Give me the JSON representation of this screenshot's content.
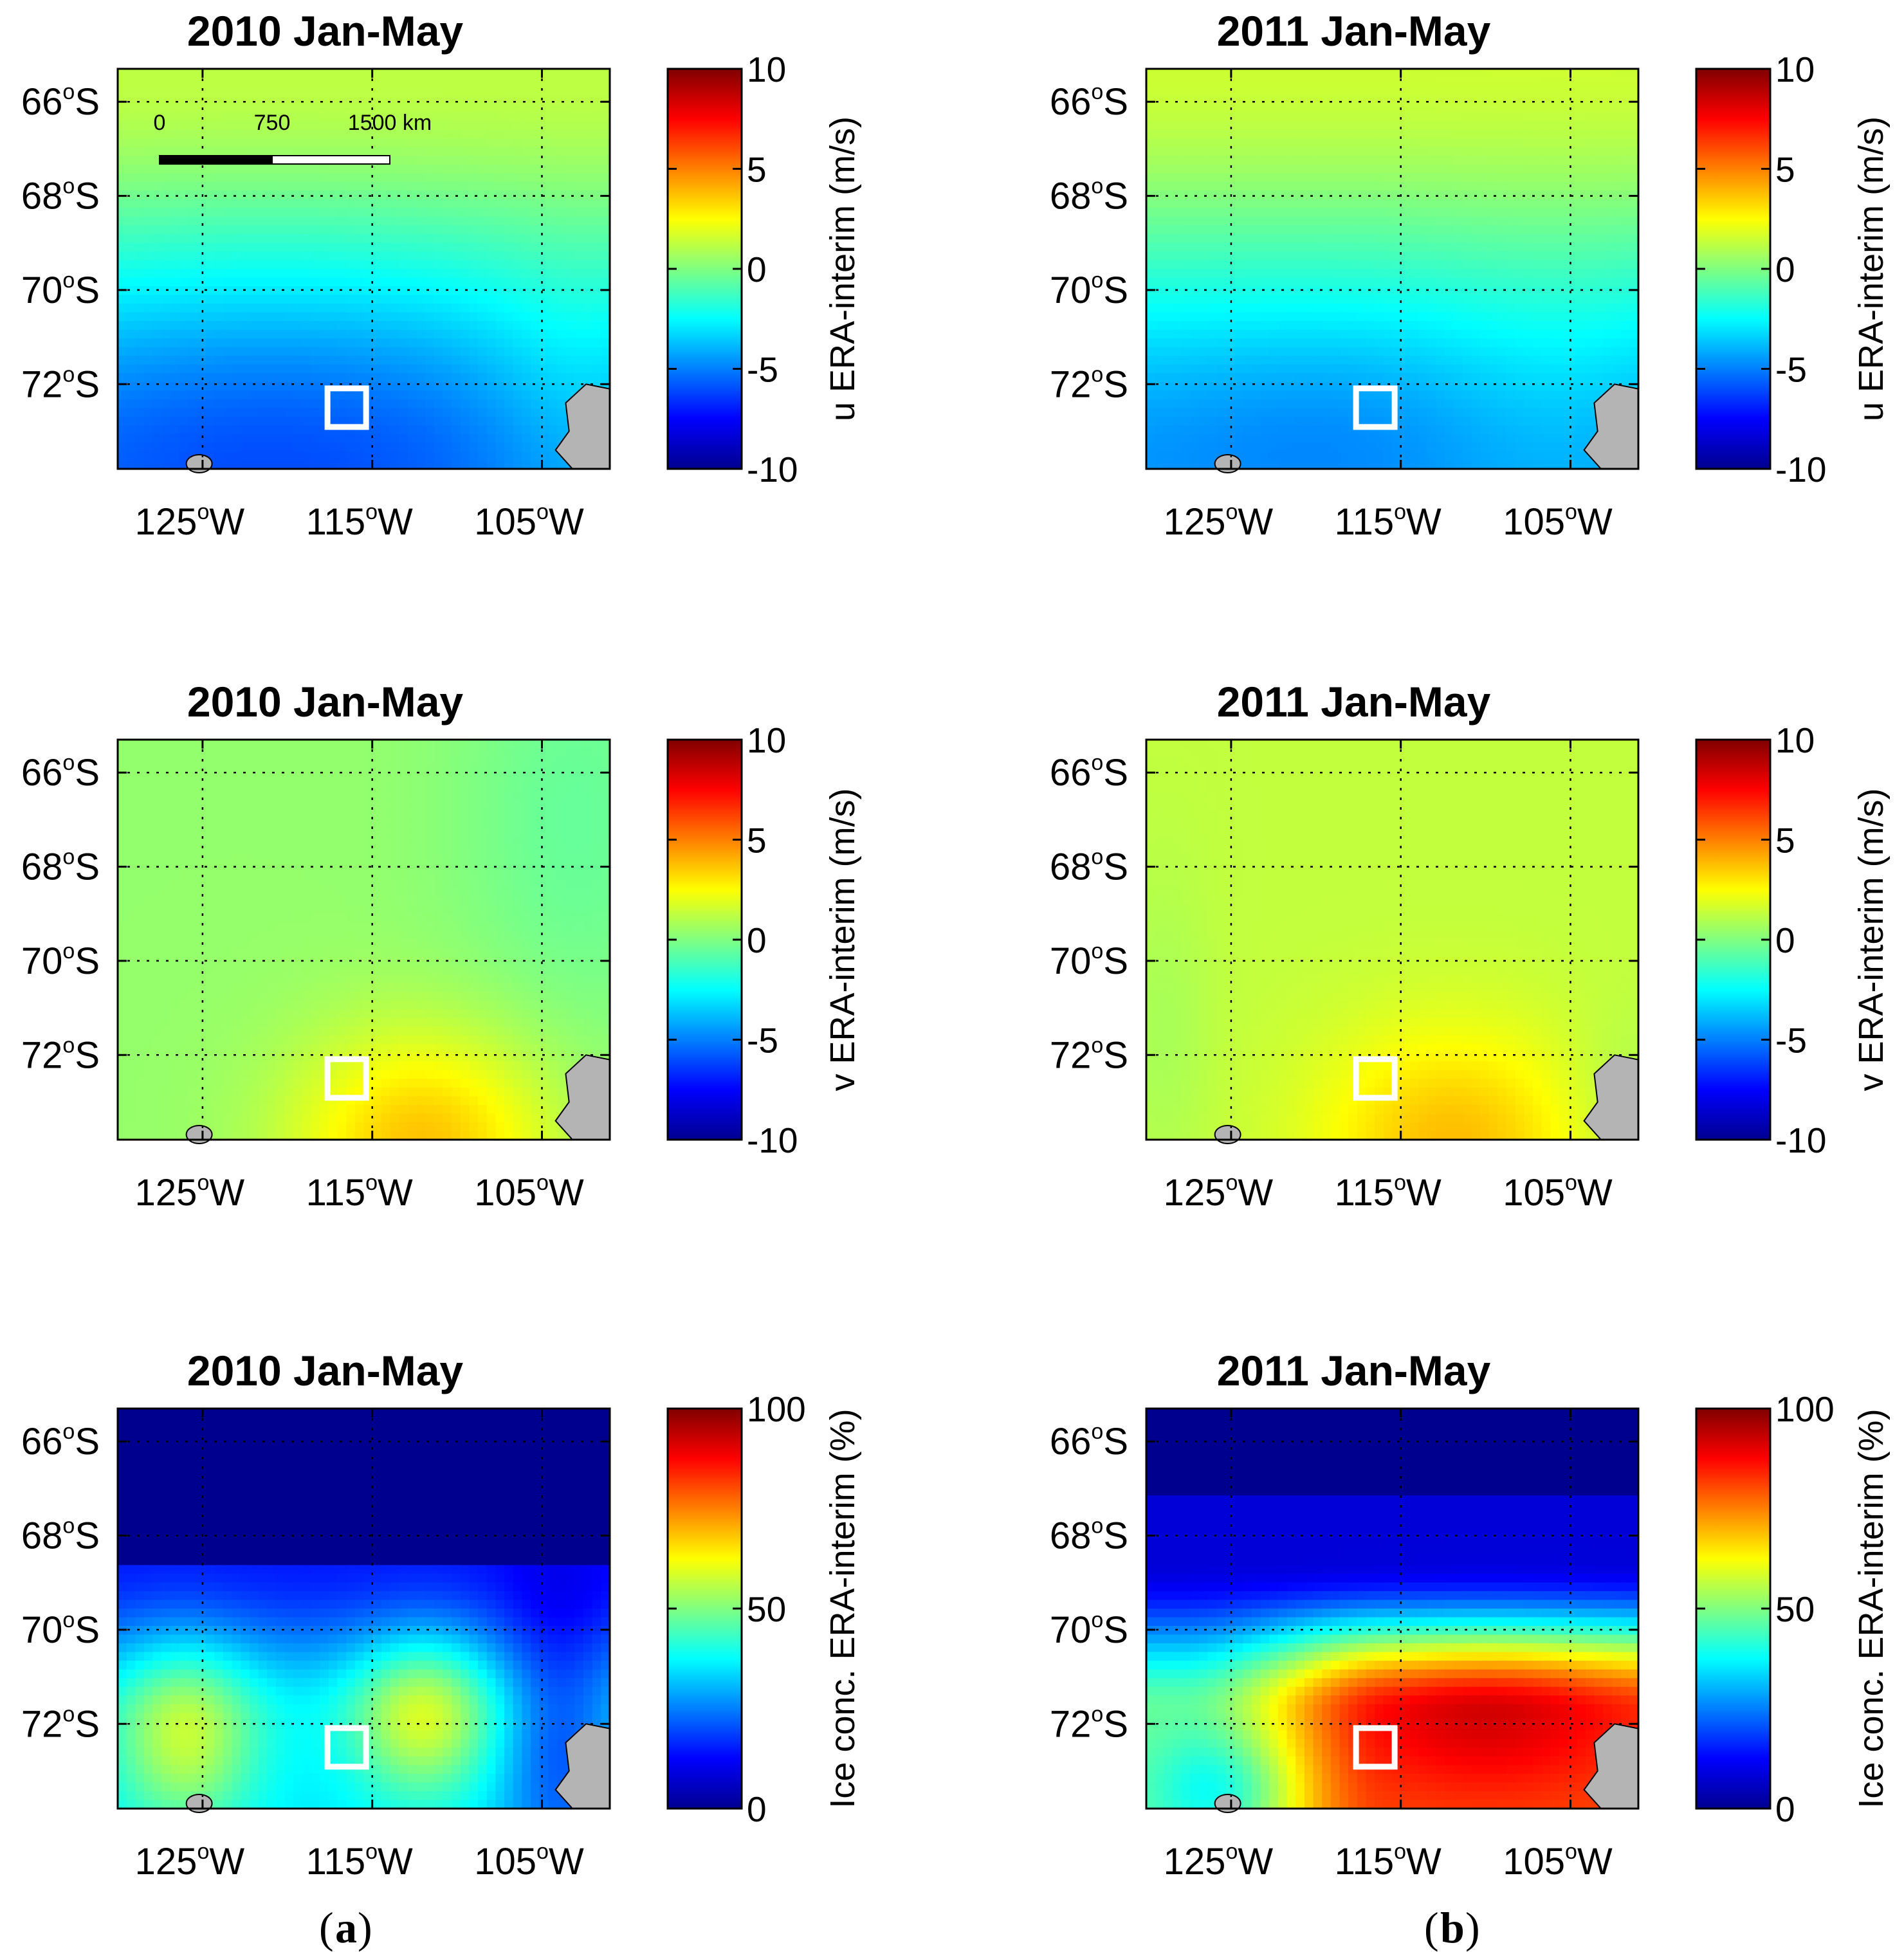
{
  "figure": {
    "column_labels": [
      {
        "open": "(",
        "letter": "a",
        "close": ")"
      },
      {
        "open": "(",
        "letter": "b",
        "close": ")"
      }
    ],
    "scale_bar": {
      "labels": [
        "0",
        "750",
        "1500 km"
      ]
    },
    "land_color": "#b4b4b4",
    "contour_color": "#000000",
    "marker_color": "#ffffff"
  },
  "chart_data": [
    {
      "type": "heatmap",
      "id": "u2010",
      "title": "2010 Jan-May",
      "xlabel": "",
      "ylabel": "",
      "x_ticks": [
        "125",
        "115",
        "105"
      ],
      "x_tick_suffix": "W",
      "y_ticks": [
        "66",
        "68",
        "70",
        "72"
      ],
      "y_tick_suffix": "S",
      "xlim": [
        -130,
        -101
      ],
      "ylim": [
        -73.8,
        -65.3
      ],
      "colorbar": {
        "label": "u ERA-interim (m/s)",
        "ticks": [
          "10",
          "5",
          "0",
          "-5",
          "-10"
        ],
        "range": [
          -10,
          10
        ]
      },
      "study_box": {
        "lon": -116.5,
        "lat": -72.5
      },
      "field_summary": "westward zonal wind strengthening toward coast, about 1 m/s at 65.5S to about -7 m/s near 73.5S 120W"
    },
    {
      "type": "heatmap",
      "id": "u2011",
      "title": "2011 Jan-May",
      "xlabel": "",
      "ylabel": "",
      "x_ticks": [
        "125",
        "115",
        "105"
      ],
      "x_tick_suffix": "W",
      "y_ticks": [
        "66",
        "68",
        "70",
        "72"
      ],
      "y_tick_suffix": "S",
      "xlim": [
        -130,
        -101
      ],
      "ylim": [
        -73.8,
        -65.3
      ],
      "colorbar": {
        "label": "u ERA-interim (m/s)",
        "ticks": [
          "10",
          "5",
          "0",
          "-5",
          "-10"
        ],
        "range": [
          -10,
          10
        ]
      },
      "study_box": {
        "lon": -116.5,
        "lat": -72.5
      },
      "field_summary": "easterlies from about 1 m/s at 65.5S to about -5 m/s near 73S"
    },
    {
      "type": "heatmap",
      "id": "v2010",
      "title": "2010 Jan-May",
      "xlabel": "",
      "ylabel": "",
      "x_ticks": [
        "125",
        "115",
        "105"
      ],
      "x_tick_suffix": "W",
      "y_ticks": [
        "66",
        "68",
        "70",
        "72"
      ],
      "y_tick_suffix": "S",
      "xlim": [
        -130,
        -101
      ],
      "ylim": [
        -73.8,
        -65.3
      ],
      "colorbar": {
        "label": "v ERA-interim (m/s)",
        "ticks": [
          "10",
          "5",
          "0",
          "-5",
          "-10"
        ],
        "range": [
          -10,
          10
        ]
      },
      "study_box": {
        "lon": -116.5,
        "lat": -72.5
      },
      "field_summary": "weak meridional wind near 0 to 1 m/s, maximum about 3.5 m/s near 73.7S 112W"
    },
    {
      "type": "heatmap",
      "id": "v2011",
      "title": "2011 Jan-May",
      "xlabel": "",
      "ylabel": "",
      "x_ticks": [
        "125",
        "115",
        "105"
      ],
      "x_tick_suffix": "W",
      "y_ticks": [
        "66",
        "68",
        "70",
        "72"
      ],
      "y_tick_suffix": "S",
      "xlim": [
        -130,
        -101
      ],
      "ylim": [
        -73.8,
        -65.3
      ],
      "colorbar": {
        "label": "v ERA-interim (m/s)",
        "ticks": [
          "10",
          "5",
          "0",
          "-5",
          "-10"
        ],
        "range": [
          -10,
          10
        ]
      },
      "study_box": {
        "lon": -116.5,
        "lat": -72.5
      },
      "field_summary": "weak meridional wind about 1 to 2 m/s, maximum about 3.5 m/s near 73.7S 112W"
    },
    {
      "type": "heatmap",
      "id": "ice2010",
      "title": "2010 Jan-May",
      "xlabel": "",
      "ylabel": "",
      "x_ticks": [
        "125",
        "115",
        "105"
      ],
      "x_tick_suffix": "W",
      "y_ticks": [
        "66",
        "68",
        "70",
        "72"
      ],
      "y_tick_suffix": "S",
      "xlim": [
        -130,
        -101
      ],
      "ylim": [
        -73.8,
        -65.3
      ],
      "colorbar": {
        "label": "Ice conc. ERA-interim (%)",
        "ticks": [
          "100",
          "50",
          "0"
        ],
        "range": [
          0,
          100
        ]
      },
      "study_box": {
        "lon": -116.5,
        "lat": -72.5
      },
      "field_summary": "open water north of 68.5S, 10 to 40 percent near 70S, patches about 55 percent near 72S"
    },
    {
      "type": "heatmap",
      "id": "ice2011",
      "title": "2011 Jan-May",
      "xlabel": "",
      "ylabel": "",
      "x_ticks": [
        "125",
        "115",
        "105"
      ],
      "x_tick_suffix": "W",
      "y_ticks": [
        "66",
        "68",
        "70",
        "72"
      ],
      "y_tick_suffix": "S",
      "xlim": [
        -130,
        -101
      ],
      "ylim": [
        -73.8,
        -65.3
      ],
      "colorbar": {
        "label": "Ice conc. ERA-interim (%)",
        "ticks": [
          "100",
          "50",
          "0"
        ],
        "range": [
          0,
          100
        ]
      },
      "study_box": {
        "lon": -116.5,
        "lat": -72.5
      },
      "field_summary": "open water north of 67S, pack ice rising to about 90 percent near 71.5S 110W"
    }
  ]
}
